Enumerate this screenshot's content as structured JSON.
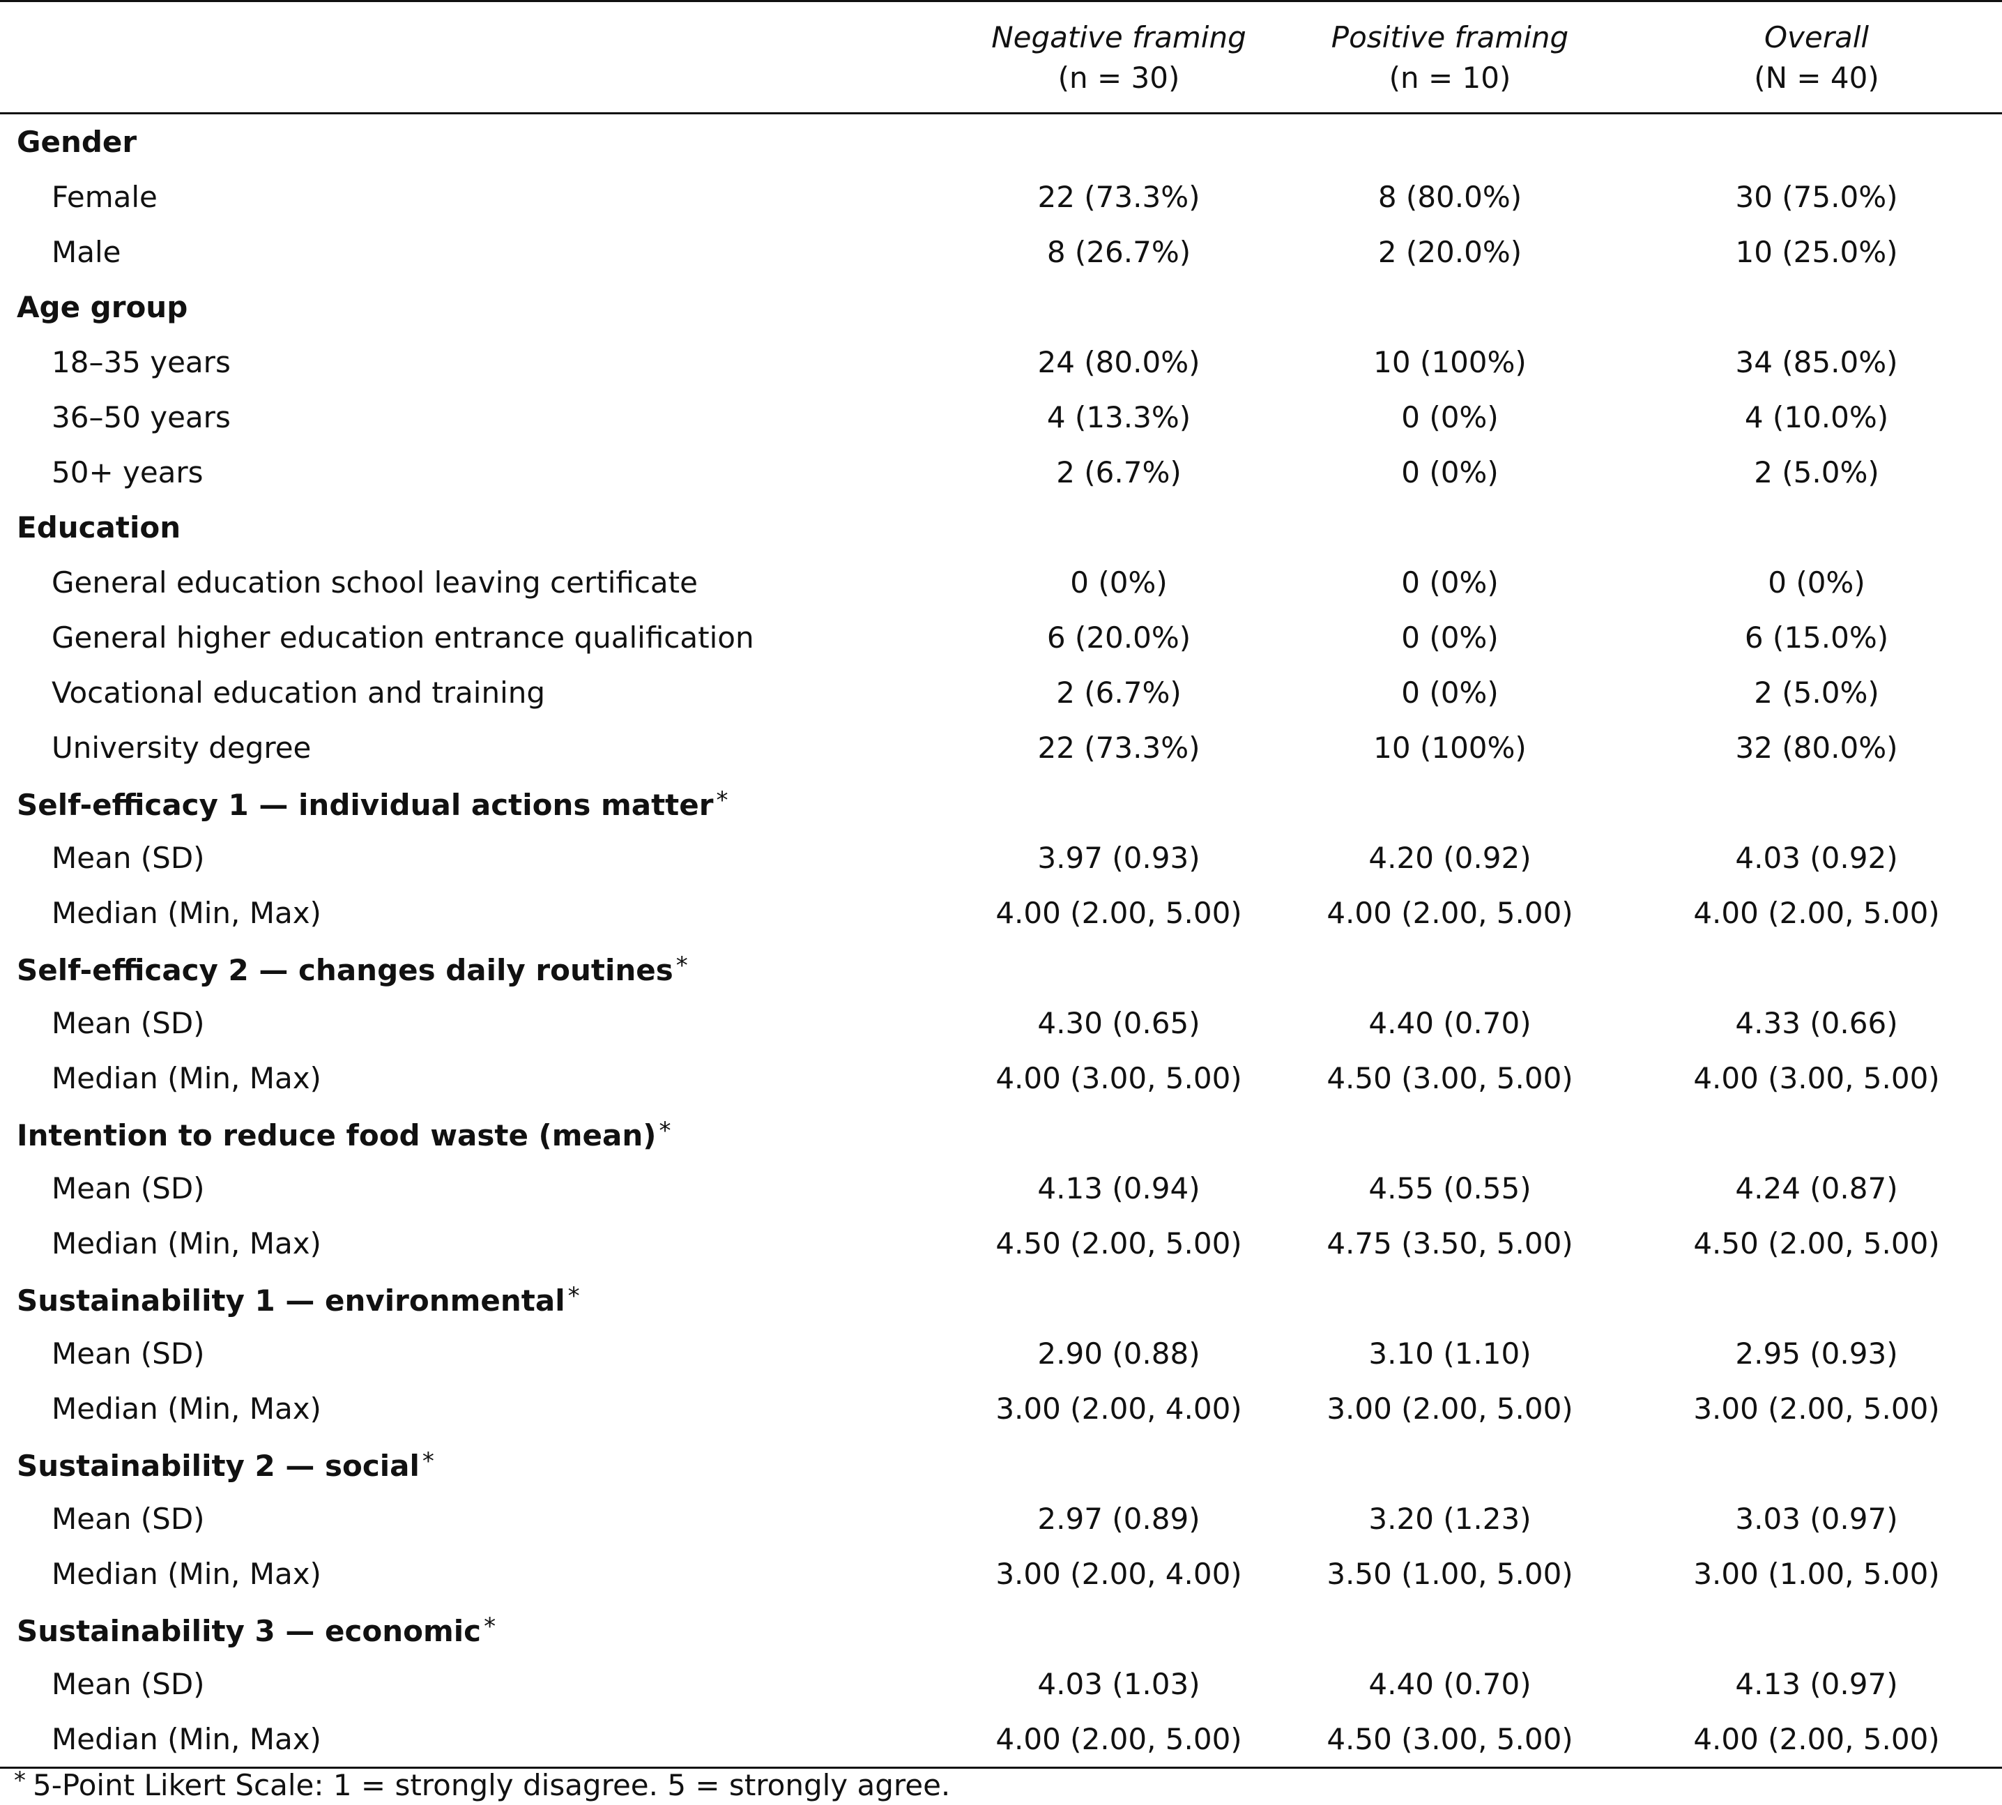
{
  "columns": [
    {
      "name": "Negative framing",
      "n": "(n = 30)"
    },
    {
      "name": "Positive framing",
      "n": "(n = 10)"
    },
    {
      "name": "Overall",
      "n": "(N = 40)"
    }
  ],
  "sections": [
    {
      "title": "Gender",
      "star": "",
      "rows": [
        {
          "label": "Female",
          "values": [
            "22 (73.3%)",
            "8 (80.0%)",
            "30 (75.0%)"
          ]
        },
        {
          "label": "Male",
          "values": [
            "8 (26.7%)",
            "2 (20.0%)",
            "10 (25.0%)"
          ]
        }
      ]
    },
    {
      "title": "Age group",
      "star": "",
      "rows": [
        {
          "label": "18–35 years",
          "values": [
            "24 (80.0%)",
            "10 (100%)",
            "34 (85.0%)"
          ]
        },
        {
          "label": "36–50 years",
          "values": [
            "4 (13.3%)",
            "0 (0%)",
            "4 (10.0%)"
          ]
        },
        {
          "label": "50+ years",
          "values": [
            "2 (6.7%)",
            "0 (0%)",
            "2 (5.0%)"
          ]
        }
      ]
    },
    {
      "title": "Education",
      "star": "",
      "rows": [
        {
          "label": "General education school leaving certificate",
          "values": [
            "0 (0%)",
            "0 (0%)",
            "0 (0%)"
          ]
        },
        {
          "label": "General higher education entrance qualification",
          "values": [
            "6 (20.0%)",
            "0 (0%)",
            "6 (15.0%)"
          ]
        },
        {
          "label": "Vocational education and training",
          "values": [
            "2 (6.7%)",
            "0 (0%)",
            "2 (5.0%)"
          ]
        },
        {
          "label": "University degree",
          "values": [
            "22 (73.3%)",
            "10 (100%)",
            "32 (80.0%)"
          ]
        }
      ]
    },
    {
      "title": "Self-efficacy 1 — individual actions matter",
      "star": "*",
      "rows": [
        {
          "label": "Mean (SD)",
          "values": [
            "3.97 (0.93)",
            "4.20 (0.92)",
            "4.03 (0.92)"
          ]
        },
        {
          "label": "Median (Min, Max)",
          "values": [
            "4.00 (2.00, 5.00)",
            "4.00 (2.00, 5.00)",
            "4.00 (2.00, 5.00)"
          ]
        }
      ]
    },
    {
      "title": "Self-efficacy 2 — changes daily routines",
      "star": "*",
      "rows": [
        {
          "label": "Mean (SD)",
          "values": [
            "4.30 (0.65)",
            "4.40 (0.70)",
            "4.33 (0.66)"
          ]
        },
        {
          "label": "Median (Min, Max)",
          "values": [
            "4.00 (3.00, 5.00)",
            "4.50 (3.00, 5.00)",
            "4.00 (3.00, 5.00)"
          ]
        }
      ]
    },
    {
      "title": "Intention to reduce food waste (mean)",
      "star": "*",
      "rows": [
        {
          "label": "Mean (SD)",
          "values": [
            "4.13 (0.94)",
            "4.55 (0.55)",
            "4.24 (0.87)"
          ]
        },
        {
          "label": "Median (Min, Max)",
          "values": [
            "4.50 (2.00, 5.00)",
            "4.75 (3.50, 5.00)",
            "4.50 (2.00, 5.00)"
          ]
        }
      ]
    },
    {
      "title": "Sustainability 1 — environmental",
      "star": "*",
      "rows": [
        {
          "label": "Mean (SD)",
          "values": [
            "2.90 (0.88)",
            "3.10 (1.10)",
            "2.95 (0.93)"
          ]
        },
        {
          "label": "Median (Min, Max)",
          "values": [
            "3.00 (2.00, 4.00)",
            "3.00 (2.00, 5.00)",
            "3.00 (2.00, 5.00)"
          ]
        }
      ]
    },
    {
      "title": "Sustainability 2 — social",
      "star": "*",
      "rows": [
        {
          "label": "Mean (SD)",
          "values": [
            "2.97 (0.89)",
            "3.20 (1.23)",
            "3.03 (0.97)"
          ]
        },
        {
          "label": "Median (Min, Max)",
          "values": [
            "3.00 (2.00, 4.00)",
            "3.50 (1.00, 5.00)",
            "3.00 (1.00, 5.00)"
          ]
        }
      ]
    },
    {
      "title": "Sustainability 3 — economic",
      "star": "*",
      "rows": [
        {
          "label": "Mean (SD)",
          "values": [
            "4.03 (1.03)",
            "4.40 (0.70)",
            "4.13 (0.97)"
          ]
        },
        {
          "label": "Median (Min, Max)",
          "values": [
            "4.00 (2.00, 5.00)",
            "4.50 (3.00, 5.00)",
            "4.00 (2.00, 5.00)"
          ]
        }
      ]
    }
  ],
  "footnote": {
    "star": "*",
    "text": "5-Point Likert Scale: 1 = strongly disagree. 5 = strongly agree."
  }
}
